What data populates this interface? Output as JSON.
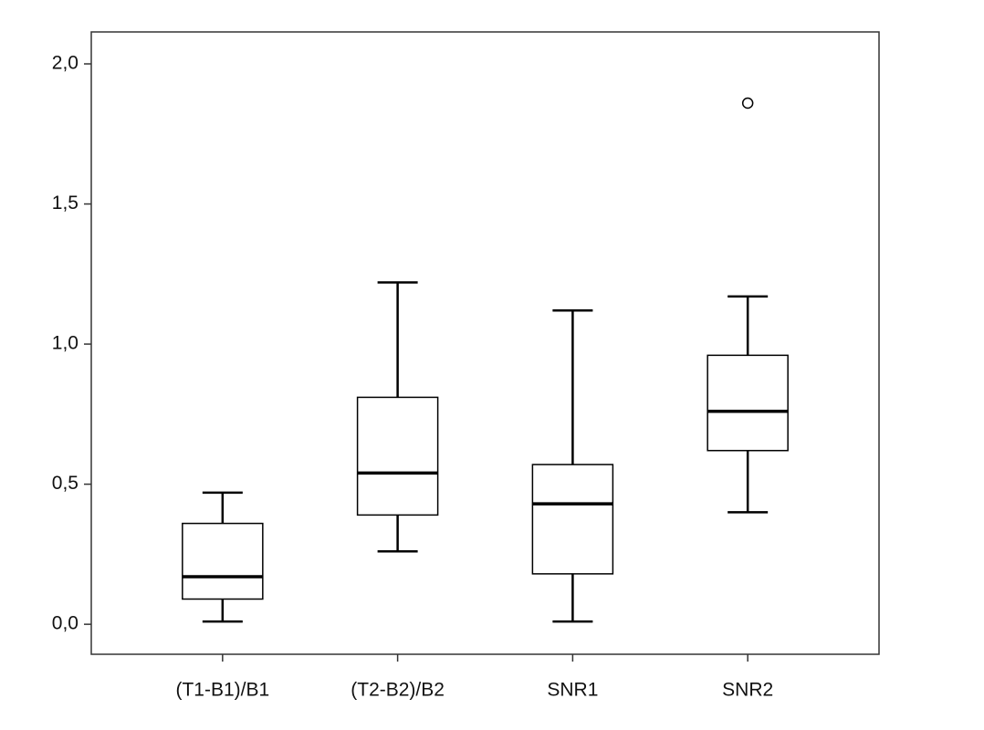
{
  "chart_data": {
    "type": "box",
    "categories": [
      "(T1-B1)/B1",
      "(T2-B2)/B2",
      "SNR1",
      "SNR2"
    ],
    "min": [
      0.01,
      0.26,
      0.01,
      0.4
    ],
    "q1": [
      0.09,
      0.39,
      0.18,
      0.62
    ],
    "median": [
      0.17,
      0.54,
      0.43,
      0.76
    ],
    "q3": [
      0.36,
      0.81,
      0.57,
      0.96
    ],
    "max": [
      0.47,
      1.22,
      1.12,
      1.17
    ],
    "outliers": [
      [],
      [],
      [],
      [
        1.86
      ]
    ],
    "ylim": [
      -0.107,
      2.114
    ],
    "yticks": [
      {
        "value": 0,
        "label": "0,0"
      },
      {
        "value": 0.5,
        "label": "0,5"
      },
      {
        "value": 1,
        "label": "1,0"
      },
      {
        "value": 1.5,
        "label": "1,5"
      },
      {
        "value": 2,
        "label": "2,0"
      }
    ],
    "color": "#000000"
  }
}
